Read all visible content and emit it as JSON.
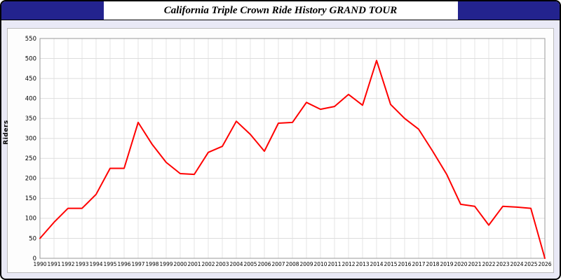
{
  "header": {
    "title": "California Triple Crown Ride History GRAND TOUR"
  },
  "chart_data": {
    "type": "line",
    "title": "California Triple Crown Ride History GRAND TOUR",
    "xlabel": "",
    "ylabel": "Riders",
    "ylim": [
      0,
      550
    ],
    "ytick_step": 50,
    "grid": true,
    "legend_position": "none",
    "line_color": "#ff0000",
    "x": [
      1990,
      1991,
      1992,
      1993,
      1994,
      1995,
      1996,
      1997,
      1998,
      1999,
      2000,
      2001,
      2002,
      2003,
      2004,
      2005,
      2006,
      2007,
      2008,
      2009,
      2010,
      2011,
      2012,
      2013,
      2014,
      2015,
      2016,
      2017,
      2018,
      2019,
      2020,
      2021,
      2022,
      2023,
      2024,
      2025,
      2026
    ],
    "series": [
      {
        "name": "Riders",
        "values": [
          50,
          90,
          125,
          125,
          160,
          225,
          225,
          340,
          285,
          240,
          212,
          210,
          265,
          280,
          343,
          310,
          268,
          338,
          340,
          390,
          373,
          380,
          410,
          383,
          495,
          385,
          350,
          323,
          268,
          210,
          135,
          130,
          83,
          130,
          128,
          125,
          0
        ]
      }
    ]
  },
  "colors": {
    "header_bg": "#23238e",
    "page_bg": "#e9e9f6",
    "plot_bg": "#ffffff",
    "grid_line": "#dddddd",
    "line": "#ff0000"
  }
}
